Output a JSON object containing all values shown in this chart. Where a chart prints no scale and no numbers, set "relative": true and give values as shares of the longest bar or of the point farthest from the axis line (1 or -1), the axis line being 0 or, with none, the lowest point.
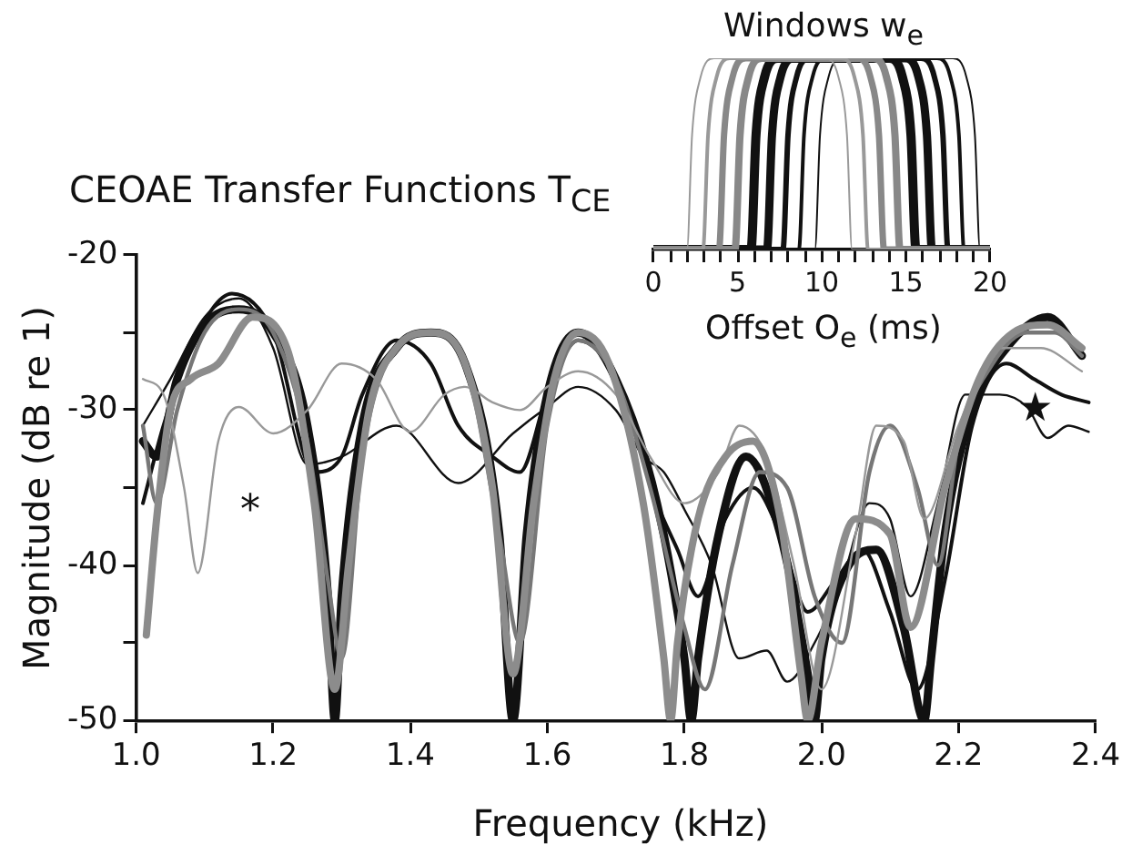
{
  "chart_data": [
    {
      "type": "line",
      "title": "CEOAE Transfer Functions T$_{CE}$",
      "xlabel": "Frequency (kHz)",
      "ylabel": "Magnitude (dB re 1)",
      "xlim": [
        1.0,
        2.4
      ],
      "xticks": [
        {
          "value": 1.0,
          "label": "1.0"
        },
        1.2,
        1.4,
        1.6,
        1.8,
        {
          "value": 2.0,
          "label": "2.0"
        },
        2.2,
        2.4
      ],
      "ylim": [
        -50,
        -20
      ],
      "yticks": [
        -50,
        {
          "value": -45,
          "label": null
        },
        -40,
        {
          "value": -35,
          "label": null
        },
        -30,
        {
          "value": -25,
          "label": null
        },
        -20
      ],
      "grid": false,
      "marker": "none",
      "annotations": [
        "*",
        "★"
      ],
      "series": [
        {
          "color": "#8c8c8c",
          "x": [
            1.015,
            1.03,
            1.05,
            1.08,
            1.12,
            1.17,
            1.22,
            1.26,
            1.29,
            1.31,
            1.34,
            1.38,
            1.43,
            1.48,
            1.52,
            1.55,
            1.58,
            1.61,
            1.645,
            1.69,
            1.74,
            1.77,
            1.78,
            1.79,
            1.82,
            1.86,
            1.9,
            1.94,
            1.97,
            1.98,
            2.0,
            2.05,
            2.1,
            2.13,
            2.18,
            2.23,
            2.28,
            2.33,
            2.38
          ],
          "values": [
            -44.5,
            -37,
            -30,
            -28,
            -27,
            -24,
            -26,
            -36,
            -48,
            -40,
            -30,
            -26,
            -25,
            -27,
            -35,
            -47,
            -36,
            -28,
            -25,
            -27,
            -36,
            -46,
            -50,
            -45,
            -37,
            -33,
            -32,
            -37,
            -47,
            -50,
            -45,
            -37,
            -38,
            -44,
            -35,
            -28,
            -25,
            -24.5,
            -26
          ]
        },
        {
          "color": "#999999",
          "x": [
            1.01,
            1.04,
            1.07,
            1.09,
            1.12,
            1.15,
            1.2,
            1.25,
            1.3,
            1.35,
            1.4,
            1.45,
            1.48,
            1.52,
            1.56,
            1.6,
            1.645,
            1.7,
            1.75,
            1.8,
            1.85,
            1.88,
            1.92,
            1.96,
            2.0,
            2.05,
            2.08,
            2.12,
            2.15,
            2.2,
            2.26,
            2.32,
            2.38
          ],
          "values": [
            -28,
            -29,
            -35,
            -40.5,
            -32,
            -29.8,
            -31.5,
            -30,
            -27,
            -28,
            -31.4,
            -29,
            -28.5,
            -29.5,
            -30,
            -28.5,
            -27.5,
            -29,
            -33,
            -36,
            -34,
            -31,
            -33,
            -40,
            -48,
            -38,
            -31,
            -32,
            -37,
            -31,
            -26,
            -26,
            -27.5
          ]
        },
        {
          "color": "#777777",
          "x": [
            1.01,
            1.03,
            1.06,
            1.1,
            1.15,
            1.2,
            1.25,
            1.28,
            1.3,
            1.33,
            1.38,
            1.43,
            1.48,
            1.53,
            1.56,
            1.6,
            1.645,
            1.7,
            1.75,
            1.8,
            1.83,
            1.87,
            1.91,
            1.95,
            1.99,
            2.03,
            2.07,
            2.1,
            2.14,
            2.17,
            2.2,
            2.25,
            2.3,
            2.34,
            2.38
          ],
          "values": [
            -31,
            -36,
            -30,
            -25,
            -23.5,
            -25,
            -32,
            -41,
            -46,
            -33,
            -26,
            -25,
            -27,
            -38,
            -45,
            -31,
            -25.5,
            -28,
            -35,
            -44,
            -48,
            -40,
            -34,
            -35,
            -42,
            -45,
            -34,
            -31,
            -35,
            -40,
            -32,
            -27,
            -25,
            -25,
            -26.5
          ]
        },
        {
          "color": "#111111",
          "x": [
            1.01,
            1.05,
            1.1,
            1.15,
            1.2,
            1.25,
            1.3,
            1.38,
            1.47,
            1.55,
            1.6,
            1.645,
            1.7,
            1.74,
            1.77,
            1.8,
            1.84,
            1.88,
            1.92,
            1.95,
            1.99,
            2.03,
            2.07,
            2.1,
            2.13,
            2.17,
            2.21,
            2.26,
            2.3,
            2.33,
            2.36,
            2.39
          ],
          "values": [
            -31,
            -28,
            -24,
            -22.8,
            -26,
            -33.5,
            -33,
            -31,
            -34.7,
            -31.5,
            -29.8,
            -28.5,
            -30,
            -33,
            -34,
            -36.4,
            -40,
            -46,
            -45.5,
            -47.5,
            -45,
            -41,
            -36,
            -37,
            -42,
            -36,
            -29,
            -29,
            -29.8,
            -31.8,
            -31,
            -31.4
          ]
        },
        {
          "color": "#111111",
          "x": [
            1.01,
            1.04,
            1.08,
            1.14,
            1.2,
            1.26,
            1.3,
            1.33,
            1.38,
            1.43,
            1.47,
            1.52,
            1.56,
            1.6,
            1.645,
            1.7,
            1.76,
            1.79,
            1.82,
            1.86,
            1.9,
            1.94,
            1.98,
            2.02,
            2.06,
            2.1,
            2.14,
            2.18,
            2.22,
            2.27,
            2.31,
            2.35,
            2.39
          ],
          "values": [
            -36,
            -31,
            -26,
            -22.5,
            -25,
            -34,
            -33,
            -29,
            -25.5,
            -27,
            -31,
            -33,
            -34,
            -29,
            -25.5,
            -28,
            -36,
            -39,
            -42,
            -37,
            -35,
            -38,
            -43,
            -41,
            -39,
            -43,
            -48,
            -41,
            -31,
            -27,
            -28,
            -29,
            -29.5
          ]
        },
        {
          "color": "#111111",
          "x": [
            1.01,
            1.03,
            1.06,
            1.1,
            1.15,
            1.2,
            1.25,
            1.28,
            1.29,
            1.3,
            1.33,
            1.38,
            1.43,
            1.48,
            1.53,
            1.55,
            1.57,
            1.6,
            1.645,
            1.7,
            1.76,
            1.8,
            1.81,
            1.82,
            1.85,
            1.89,
            1.94,
            1.98,
            1.99,
            2.0,
            2.04,
            2.08,
            2.12,
            2.15,
            2.16,
            2.18,
            2.22,
            2.27,
            2.33,
            2.38
          ],
          "values": [
            -32,
            -33,
            -28,
            -24.5,
            -23.5,
            -25,
            -31,
            -42,
            -50,
            -42,
            -31,
            -26,
            -25,
            -27,
            -38,
            -50,
            -38,
            -29,
            -25,
            -28,
            -36,
            -46,
            -50,
            -46,
            -38,
            -33,
            -38,
            -47,
            -50,
            -46,
            -40,
            -39,
            -44,
            -50,
            -46,
            -38,
            -30,
            -26,
            -24,
            -26.5
          ]
        }
      ]
    },
    {
      "type": "line",
      "title": "Windows w$_{e}$",
      "xlabel": "Offset O$_{e}$ (ms)",
      "relative": true,
      "tick_labels": "x",
      "grid": false,
      "marker": "none",
      "xlim": [
        0,
        20
      ],
      "xticks": [
        0,
        {
          "value": 1,
          "label": null
        },
        {
          "value": 2,
          "label": null
        },
        {
          "value": 3,
          "label": null
        },
        {
          "value": 4,
          "label": null
        },
        5,
        {
          "value": 6,
          "label": null
        },
        {
          "value": 7,
          "label": null
        },
        {
          "value": 8,
          "label": null
        },
        {
          "value": 9,
          "label": null
        },
        10,
        {
          "value": 11,
          "label": null
        },
        {
          "value": 12,
          "label": null
        },
        {
          "value": 13,
          "label": null
        },
        {
          "value": 14,
          "label": null
        },
        15,
        {
          "value": 16,
          "label": null
        },
        {
          "value": 17,
          "label": null
        },
        {
          "value": 18,
          "label": null
        },
        {
          "value": 19,
          "label": null
        },
        20
      ],
      "series": [
        {
          "color": "#999999",
          "x": [
            0,
            2,
            2.3,
            2.8,
            3.6,
            10.2,
            11,
            11.5,
            11.8,
            20
          ],
          "values": [
            0,
            0,
            0.6,
            0.9,
            1,
            1,
            0.9,
            0.6,
            0,
            0
          ]
        },
        {
          "color": "#999999",
          "x": [
            0,
            2.95,
            3.25,
            3.75,
            4.55,
            11.15,
            11.95,
            12.45,
            12.75,
            20
          ],
          "values": [
            0,
            0,
            0.6,
            0.9,
            1,
            1,
            0.9,
            0.6,
            0,
            0
          ]
        },
        {
          "color": "#888888",
          "x": [
            0,
            3.9,
            4.2,
            4.7,
            5.5,
            12.1,
            12.9,
            13.4,
            13.7,
            20
          ],
          "values": [
            0,
            0,
            0.6,
            0.9,
            1,
            1,
            0.9,
            0.6,
            0,
            0
          ]
        },
        {
          "color": "#888888",
          "x": [
            0,
            4.85,
            5.15,
            5.65,
            6.45,
            13.05,
            13.85,
            14.35,
            14.65,
            20
          ],
          "values": [
            0,
            0,
            0.6,
            0.9,
            1,
            1,
            0.9,
            0.6,
            0,
            0
          ]
        },
        {
          "color": "#111111",
          "x": [
            0,
            5.8,
            6.1,
            6.6,
            7.4,
            14,
            14.8,
            15.3,
            15.6,
            20
          ],
          "values": [
            0,
            0,
            0.6,
            0.9,
            1,
            1,
            0.9,
            0.6,
            0,
            0
          ]
        },
        {
          "color": "#111111",
          "x": [
            0,
            6.75,
            7.05,
            7.55,
            8.35,
            14.95,
            15.75,
            16.25,
            16.55,
            20
          ],
          "values": [
            0,
            0,
            0.6,
            0.9,
            1,
            1,
            0.9,
            0.6,
            0,
            0
          ]
        },
        {
          "color": "#111111",
          "x": [
            0,
            7.7,
            8,
            8.5,
            9.3,
            15.9,
            16.7,
            17.2,
            17.5,
            20
          ],
          "values": [
            0,
            0,
            0.6,
            0.9,
            1,
            1,
            0.9,
            0.6,
            0,
            0
          ]
        },
        {
          "color": "#111111",
          "x": [
            0,
            8.65,
            8.95,
            9.45,
            10.25,
            16.85,
            17.65,
            18.15,
            18.45,
            20
          ],
          "values": [
            0,
            0,
            0.6,
            0.9,
            1,
            1,
            0.9,
            0.6,
            0,
            0
          ]
        },
        {
          "color": "#111111",
          "x": [
            0,
            9.6,
            9.9,
            10.4,
            11.2,
            17.8,
            18.6,
            19.1,
            19.4,
            20
          ],
          "values": [
            0,
            0,
            0.6,
            0.9,
            1,
            1,
            0.9,
            0.6,
            0,
            0
          ]
        }
      ]
    }
  ]
}
